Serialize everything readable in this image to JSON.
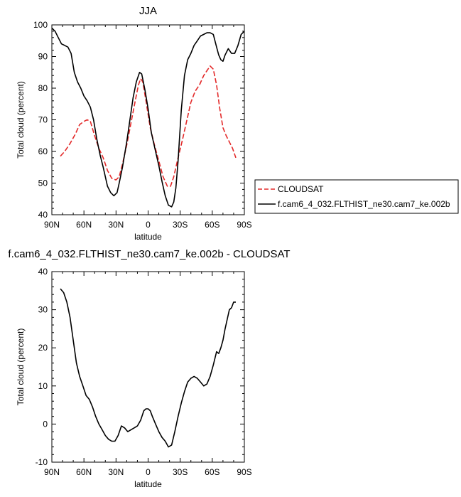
{
  "chart_data": [
    {
      "type": "line",
      "title": "JJA",
      "xlabel": "latitude",
      "ylabel": "Total cloud (percent)",
      "xlim": [
        -90,
        90
      ],
      "ylim": [
        40,
        100
      ],
      "x_ticks": [
        -90,
        -60,
        -30,
        0,
        30,
        60,
        90
      ],
      "x_tick_labels": [
        "90N",
        "60N",
        "30N",
        "0",
        "30S",
        "60S",
        "90S"
      ],
      "y_ticks": [
        40,
        50,
        60,
        70,
        80,
        90,
        100
      ],
      "legend_position": "right",
      "series": [
        {
          "name": "CLOUDSAT",
          "color": "#e32a2a",
          "dash": "dashed",
          "x": [
            -82,
            -78,
            -73,
            -68,
            -64,
            -60,
            -57,
            -54,
            -50,
            -46,
            -42,
            -38,
            -34,
            -30,
            -27,
            -24,
            -20,
            -16,
            -12,
            -9,
            -7,
            -5,
            -2,
            2,
            6,
            10,
            14,
            18,
            21,
            24,
            28,
            32,
            36,
            40,
            44,
            48,
            52,
            55,
            58,
            61,
            64,
            67,
            70,
            73,
            76,
            79,
            82
          ],
          "y": [
            58.5,
            60,
            62.5,
            65.5,
            68.5,
            69.5,
            70,
            69.5,
            65,
            61,
            58,
            54,
            51.5,
            51,
            52,
            56,
            62,
            69,
            76,
            81,
            83,
            82,
            76,
            67.5,
            62,
            57,
            52,
            49,
            49,
            52,
            58,
            63.5,
            69.5,
            75.5,
            79,
            81,
            84,
            85.5,
            87,
            86,
            81,
            73.5,
            67.5,
            65,
            63,
            61,
            58
          ]
        },
        {
          "name": "f.cam6_4_032.FLTHIST_ne30.cam7_ke.002b",
          "color": "#000000",
          "dash": "solid",
          "x": [
            -90,
            -87,
            -84,
            -81,
            -78,
            -75,
            -72,
            -69,
            -66,
            -63,
            -60,
            -57,
            -54,
            -51,
            -48,
            -45,
            -42,
            -38,
            -35,
            -32,
            -29,
            -27,
            -24,
            -20,
            -17,
            -14,
            -11,
            -8,
            -6,
            -3,
            0,
            3,
            7,
            10,
            13,
            16,
            19,
            22,
            24,
            26,
            28,
            31,
            34,
            37,
            40,
            43,
            46,
            49,
            52,
            55,
            58,
            61,
            64,
            66,
            68,
            70,
            72,
            75,
            78,
            81,
            84,
            87,
            90
          ],
          "y": [
            99,
            98,
            96,
            94,
            93.5,
            93,
            91,
            85,
            82,
            80,
            77.5,
            76,
            74,
            70,
            64,
            59,
            55,
            49,
            47,
            46,
            47,
            50,
            55,
            63,
            70,
            77,
            82,
            85,
            84.5,
            79.5,
            73.5,
            66,
            60,
            55.5,
            50.5,
            46,
            43,
            42.5,
            44,
            48.5,
            57,
            73,
            84,
            89,
            91,
            93.5,
            95,
            96.5,
            97,
            97.5,
            97.5,
            97,
            93,
            90.5,
            89,
            88.5,
            90.5,
            92.5,
            91,
            91,
            93.5,
            97,
            98
          ]
        }
      ]
    },
    {
      "type": "line",
      "title": "f.cam6_4_032.FLTHIST_ne30.cam7_ke.002b - CLOUDSAT",
      "xlabel": "latitude",
      "ylabel": "Total cloud (percent)",
      "xlim": [
        -90,
        90
      ],
      "ylim": [
        -10,
        40
      ],
      "x_ticks": [
        -90,
        -60,
        -30,
        0,
        30,
        60,
        90
      ],
      "x_tick_labels": [
        "90N",
        "60N",
        "30N",
        "0",
        "30S",
        "60S",
        "90S"
      ],
      "y_ticks": [
        -10,
        0,
        10,
        20,
        30,
        40
      ],
      "series": [
        {
          "color": "#000000",
          "dash": "solid",
          "x": [
            -82,
            -79,
            -76,
            -73,
            -70,
            -67,
            -64,
            -61,
            -58,
            -55,
            -52,
            -49,
            -46,
            -43,
            -40,
            -37,
            -34,
            -31,
            -28,
            -25,
            -22,
            -19,
            -16,
            -13,
            -10,
            -7,
            -4,
            -2,
            0,
            2,
            4,
            7,
            10,
            13,
            16,
            19,
            22,
            25,
            28,
            31,
            34,
            37,
            40,
            43,
            46,
            49,
            52,
            55,
            58,
            61,
            64,
            66,
            68,
            70,
            72,
            74,
            76,
            78,
            80,
            82
          ],
          "y": [
            35.5,
            34.5,
            32,
            28,
            22,
            16,
            12.5,
            10,
            7.5,
            6.5,
            4.5,
            2,
            0,
            -1.5,
            -3,
            -4,
            -4.5,
            -4.5,
            -3,
            -0.5,
            -1,
            -2,
            -1.5,
            -1,
            -0.5,
            1,
            3.5,
            4,
            4,
            3.5,
            2,
            0,
            -2,
            -3.5,
            -4.5,
            -6,
            -5.5,
            -2,
            2,
            5.5,
            8.5,
            11,
            12,
            12.5,
            12,
            11,
            10,
            10.5,
            12.5,
            15.5,
            19,
            18.5,
            20,
            22,
            25,
            27.5,
            30,
            30.5,
            32,
            32
          ]
        }
      ]
    }
  ]
}
